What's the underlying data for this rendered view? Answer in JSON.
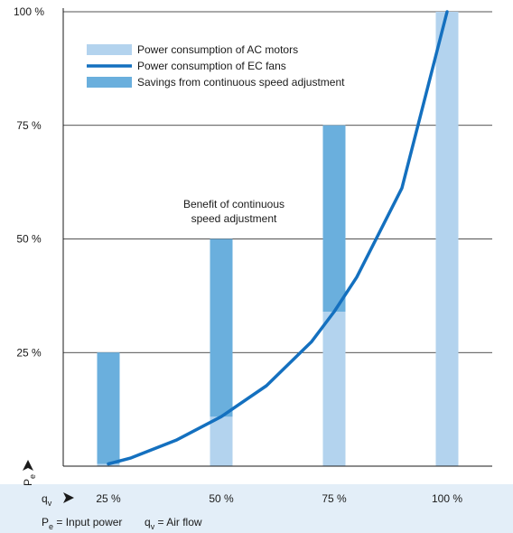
{
  "chart_data": {
    "type": "bar",
    "categories": [
      "25 %",
      "50 %",
      "75 %",
      "100 %"
    ],
    "x": [
      25,
      50,
      75,
      100
    ],
    "series": [
      {
        "name": "Power consumption of AC motors",
        "kind": "bar",
        "values": [
          25,
          50,
          75,
          100
        ],
        "color": "#b3d3ee"
      },
      {
        "name": "Power consumption of EC fans",
        "kind": "line",
        "x": [
          25,
          30,
          40,
          50,
          60,
          70,
          75,
          80,
          90,
          100
        ],
        "values": [
          0.5,
          1.8,
          5.7,
          10.9,
          17.7,
          27.4,
          34.0,
          41.6,
          61.2,
          100
        ],
        "color": "#1470bf"
      },
      {
        "name": "Savings from continuous speed adjustment",
        "kind": "bar",
        "values": [
          24.5,
          39.1,
          41.0,
          0
        ],
        "color": "#6aafdd"
      }
    ],
    "y_ticks": [
      "25 %",
      "50 %",
      "75 %",
      "100 %"
    ],
    "y_tick_values": [
      25,
      50,
      75,
      100
    ],
    "ylim": [
      0,
      100
    ],
    "xlim": [
      15,
      110
    ],
    "ylabel": "P",
    "ylabel_sub": "e",
    "xlabel": "q",
    "xlabel_sub": "v",
    "annotation": [
      "Benefit of continuous",
      "speed adjustment"
    ],
    "legend_position": "top-left",
    "grid": "horizontal",
    "footer": {
      "pe": "P",
      "pe_sub": "e",
      "pe_def": "= Input power",
      "qv": "q",
      "qv_sub": "v",
      "qv_def": "= Air flow"
    },
    "colors": {
      "footer_bg": "#e3eef8",
      "grid": "#1a1a1a"
    }
  }
}
